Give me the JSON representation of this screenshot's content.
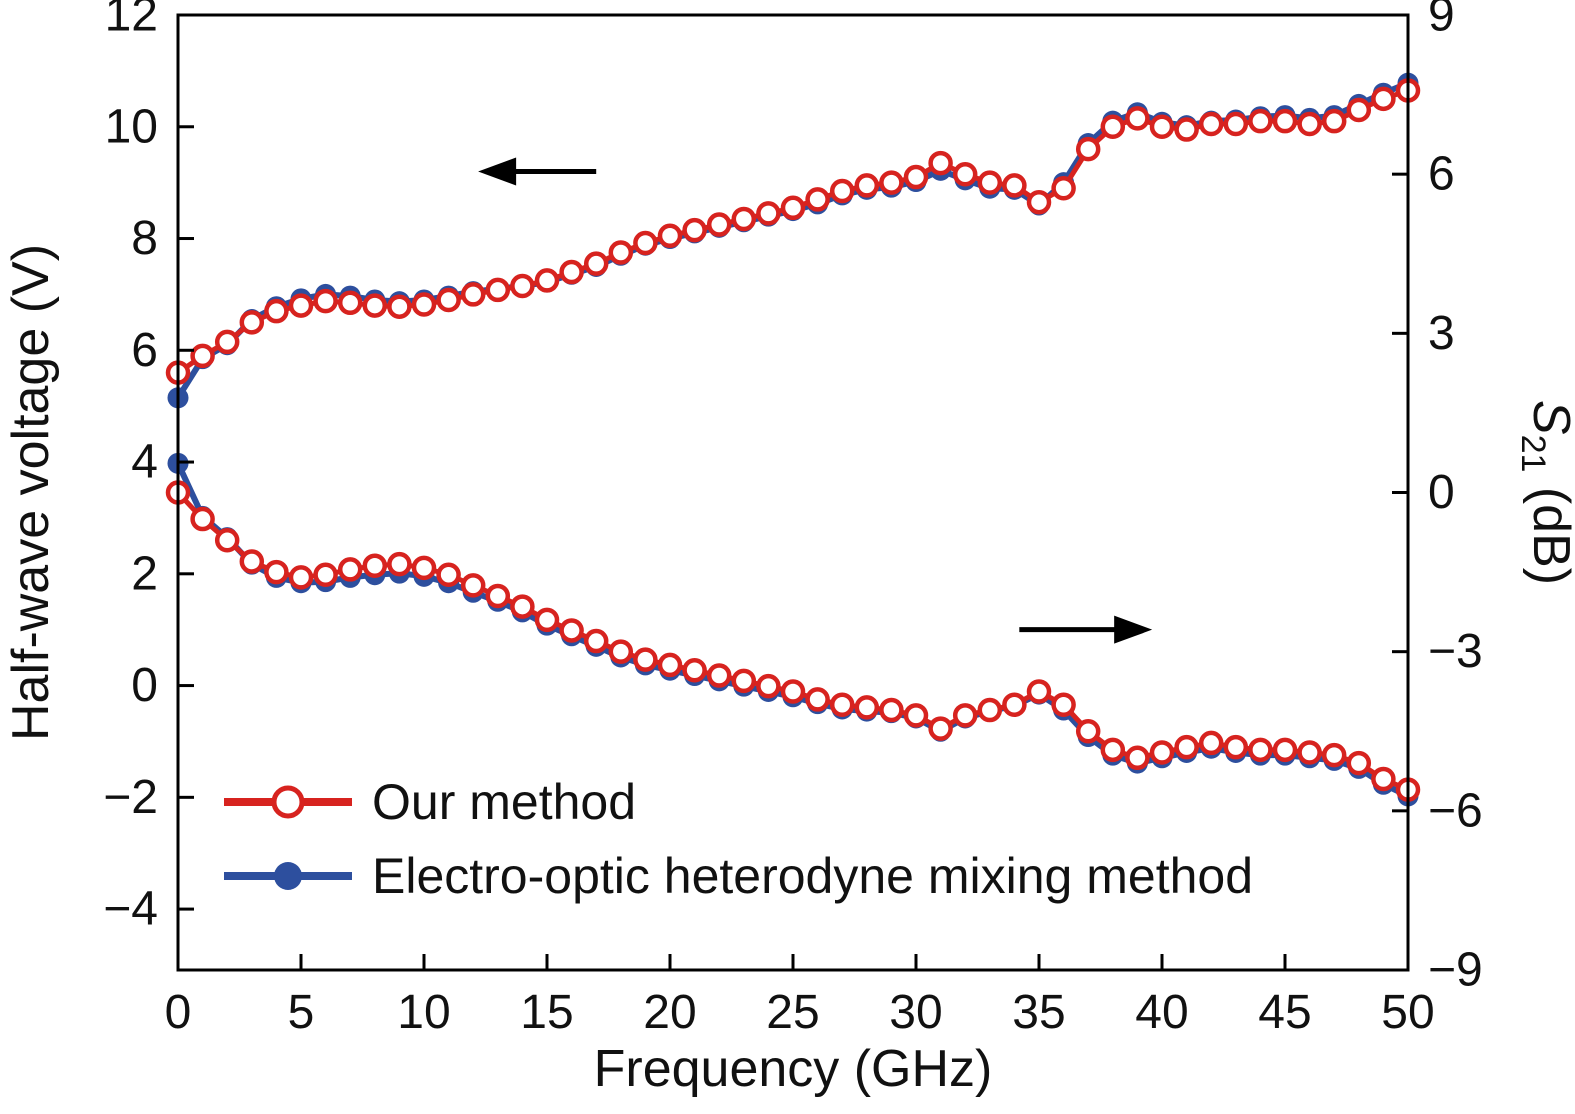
{
  "page": {
    "background": "#ffffff"
  },
  "chart_data": {
    "type": "line",
    "title": "",
    "xlabel": "Frequency (GHz)",
    "ylabel_left": "Half-wave voltage (V)",
    "ylabel_right": {
      "italic": "S",
      "sub": "21",
      "rest": " (dB)"
    },
    "xlim": [
      0,
      50
    ],
    "left_lim": [
      -5.09,
      12
    ],
    "right_lim": [
      -9,
      9
    ],
    "x_ticks": [
      0,
      5,
      10,
      15,
      20,
      25,
      30,
      35,
      40,
      45,
      50
    ],
    "left_ticks": [
      -4,
      -2,
      0,
      2,
      4,
      6,
      8,
      10,
      12
    ],
    "right_ticks": [
      -9,
      -6,
      -3,
      0,
      3,
      6,
      9
    ],
    "grid": false,
    "legend_position": "lower-left-inside",
    "colors": {
      "our_method": "#d7231f",
      "heterodyne": "#2d4f9e",
      "axis": "#000000"
    },
    "x": [
      0,
      1,
      2,
      3,
      4,
      5,
      6,
      7,
      8,
      9,
      10,
      11,
      12,
      13,
      14,
      15,
      16,
      17,
      18,
      19,
      20,
      21,
      22,
      23,
      24,
      25,
      26,
      27,
      28,
      29,
      30,
      31,
      32,
      33,
      34,
      35,
      36,
      37,
      38,
      39,
      40,
      41,
      42,
      43,
      44,
      45,
      46,
      47,
      48,
      49,
      50
    ],
    "series": [
      {
        "name": "Electro-optic heterodyne mixing method",
        "quantity": "half-wave-voltage",
        "axis": "left",
        "color": "heterodyne",
        "marker": "filled",
        "values": [
          5.15,
          5.85,
          6.1,
          6.55,
          6.78,
          6.92,
          7.0,
          6.97,
          6.9,
          6.87,
          6.9,
          6.97,
          7.05,
          7.1,
          7.15,
          7.22,
          7.36,
          7.5,
          7.7,
          7.88,
          8.0,
          8.1,
          8.2,
          8.3,
          8.4,
          8.5,
          8.62,
          8.78,
          8.88,
          8.92,
          9.02,
          9.22,
          9.05,
          8.9,
          8.88,
          8.6,
          9.0,
          9.7,
          10.1,
          10.25,
          10.08,
          10.02,
          10.1,
          10.12,
          10.18,
          10.2,
          10.15,
          10.2,
          10.4,
          10.6,
          10.78
        ]
      },
      {
        "name": "Electro-optic heterodyne mixing method",
        "quantity": "s21",
        "axis": "right",
        "color": "heterodyne",
        "marker": "filled",
        "values": [
          0.55,
          -0.45,
          -0.85,
          -1.35,
          -1.6,
          -1.7,
          -1.68,
          -1.6,
          -1.55,
          -1.52,
          -1.58,
          -1.7,
          -1.88,
          -2.05,
          -2.25,
          -2.5,
          -2.7,
          -2.9,
          -3.1,
          -3.25,
          -3.35,
          -3.45,
          -3.55,
          -3.65,
          -3.75,
          -3.85,
          -3.98,
          -4.08,
          -4.12,
          -4.15,
          -4.25,
          -4.5,
          -4.25,
          -4.12,
          -4.02,
          -3.8,
          -4.1,
          -4.6,
          -4.95,
          -5.1,
          -5.0,
          -4.9,
          -4.82,
          -4.9,
          -4.95,
          -4.95,
          -5.0,
          -5.05,
          -5.2,
          -5.5,
          -5.72
        ]
      },
      {
        "name": "Our method",
        "quantity": "half-wave-voltage",
        "axis": "left",
        "color": "our_method",
        "marker": "open",
        "values": [
          5.6,
          5.9,
          6.15,
          6.5,
          6.7,
          6.8,
          6.88,
          6.85,
          6.8,
          6.78,
          6.82,
          6.9,
          7.0,
          7.08,
          7.15,
          7.25,
          7.4,
          7.55,
          7.75,
          7.92,
          8.05,
          8.15,
          8.25,
          8.35,
          8.45,
          8.55,
          8.7,
          8.85,
          8.95,
          9.0,
          9.1,
          9.35,
          9.15,
          9.0,
          8.95,
          8.65,
          8.9,
          9.6,
          10.0,
          10.15,
          10.0,
          9.95,
          10.05,
          10.05,
          10.1,
          10.1,
          10.05,
          10.1,
          10.3,
          10.5,
          10.65
        ]
      },
      {
        "name": "Our method",
        "quantity": "s21",
        "axis": "right",
        "color": "our_method",
        "marker": "open",
        "values": [
          0.0,
          -0.5,
          -0.9,
          -1.3,
          -1.5,
          -1.6,
          -1.55,
          -1.45,
          -1.38,
          -1.35,
          -1.42,
          -1.55,
          -1.75,
          -1.95,
          -2.15,
          -2.4,
          -2.6,
          -2.8,
          -3.0,
          -3.15,
          -3.25,
          -3.35,
          -3.45,
          -3.55,
          -3.65,
          -3.75,
          -3.9,
          -4.0,
          -4.05,
          -4.1,
          -4.2,
          -4.45,
          -4.2,
          -4.1,
          -4.0,
          -3.75,
          -4.0,
          -4.5,
          -4.85,
          -5.0,
          -4.9,
          -4.8,
          -4.72,
          -4.8,
          -4.85,
          -4.85,
          -4.9,
          -4.95,
          -5.1,
          -5.4,
          -5.6
        ]
      }
    ],
    "legend": [
      {
        "label": "Our method",
        "color": "our_method",
        "marker": "open"
      },
      {
        "label": "Electro-optic heterodyne mixing method",
        "color": "heterodyne",
        "marker": "filled"
      }
    ],
    "annotations": {
      "arrows": [
        {
          "meaning": "upper-curves-read-left-axis",
          "direction": "left",
          "x_from_ghz": 17.0,
          "x_to_ghz": 12.2,
          "y_left_value": 9.2
        },
        {
          "meaning": "lower-curves-read-right-axis",
          "direction": "right",
          "x_from_ghz": 34.2,
          "x_to_ghz": 39.6,
          "y_left_value": 1.0
        }
      ]
    }
  }
}
